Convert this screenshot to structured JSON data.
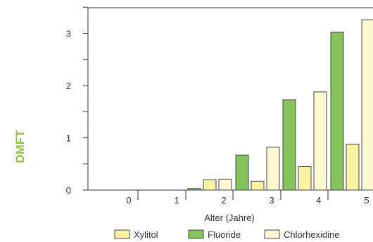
{
  "chart_data": {
    "type": "bar",
    "xlabel": "Alter (Jahre)",
    "ylabel": "DMFT",
    "ylim": [
      0,
      3.5
    ],
    "yticks": [
      "0",
      "1",
      "2",
      "3"
    ],
    "categories": [
      "0",
      "1",
      "2",
      "3",
      "4",
      "5"
    ],
    "series": [
      {
        "name": "Xylitol",
        "color": "#fbf3a4",
        "values": [
          0,
          0,
          0.2,
          0.17,
          0.45,
          0.88
        ]
      },
      {
        "name": "Fluoride",
        "color": "#86c35d",
        "values": [
          0,
          0,
          0.03,
          0.67,
          1.73,
          3.02
        ]
      },
      {
        "name": "Chlorhexidine",
        "color": "#fdf8d2",
        "values": [
          0,
          0,
          0.21,
          0.82,
          1.88,
          3.26
        ]
      }
    ],
    "legend_position": "bottom",
    "grid": false
  }
}
